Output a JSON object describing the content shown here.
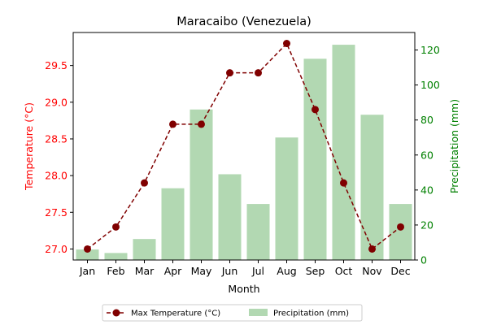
{
  "chart_data": {
    "type": "bar+line",
    "title": "Maracaibo (Venezuela)",
    "xlabel": "Month",
    "ylabel_left": "Temperature (°C)",
    "ylabel_right": "Precipitation (mm)",
    "categories": [
      "Jan",
      "Feb",
      "Mar",
      "Apr",
      "May",
      "Jun",
      "Jul",
      "Aug",
      "Sep",
      "Oct",
      "Nov",
      "Dec"
    ],
    "series": [
      {
        "name": "Max Temperature (°C)",
        "type": "line",
        "axis": "left",
        "values": [
          27.0,
          27.3,
          27.9,
          28.7,
          28.7,
          29.4,
          29.4,
          29.8,
          28.9,
          27.9,
          27.0,
          27.3
        ]
      },
      {
        "name": "Precipitation (mm)",
        "type": "bar",
        "axis": "right",
        "values": [
          6,
          4,
          12,
          41,
          86,
          49,
          32,
          70,
          115,
          123,
          83,
          32
        ]
      }
    ],
    "ylim_left": [
      26.85,
      29.95
    ],
    "yticks_left": [
      "27.0",
      "27.5",
      "28.0",
      "28.5",
      "29.0",
      "29.5"
    ],
    "ylim_right": [
      0,
      130
    ],
    "yticks_right": [
      "0",
      "20",
      "40",
      "60",
      "80",
      "100",
      "120"
    ],
    "grid": false,
    "legend_position": "bottom-center",
    "colors": {
      "line": "#800000",
      "bar": "#b2d8b2",
      "left_axis": "#ff0000",
      "right_axis": "#008000"
    }
  }
}
